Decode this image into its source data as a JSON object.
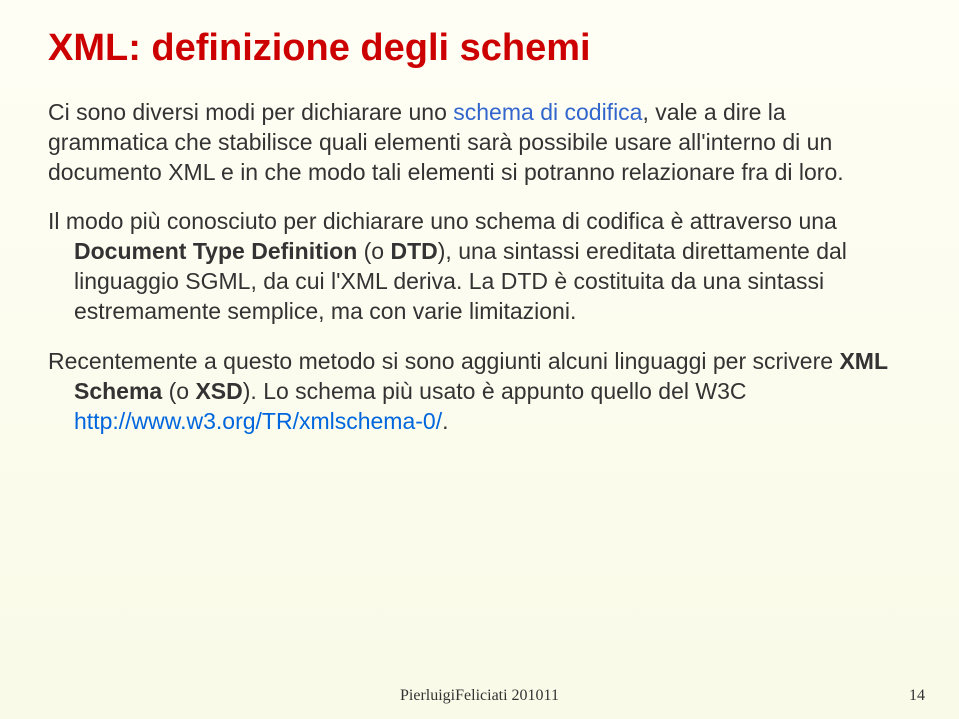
{
  "title": "XML: definizione degli schemi",
  "para1": {
    "t1": "Ci sono diversi modi per dichiarare uno ",
    "t2": "schema di codifica",
    "t3": ", vale a dire la grammatica che stabilisce quali elementi sarà possibile usare all'interno di un documento XML e in che modo tali elementi si potranno relazionare fra di loro."
  },
  "para2": {
    "t1": "Il modo più conosciuto per dichiarare uno schema di codifica è attraverso una ",
    "t2": "Document Type Definition",
    "t3": " (o ",
    "t4": "DTD",
    "t5": "), una sintassi ereditata direttamente dal linguaggio SGML, da cui l'XML deriva. La DTD è costituita da una sintassi estremamente semplice, ma con varie limitazioni."
  },
  "para3": {
    "t1": "Recentemente a questo metodo si sono aggiunti alcuni linguaggi per scrivere ",
    "t2": "XML Schema",
    "t3": " (o ",
    "t4": "XSD",
    "t5": "). Lo schema più usato è appunto quello del W3C ",
    "link": "http://www.w3.org/TR/xmlschema-0/",
    "t6": "."
  },
  "footer": "PierluigiFeliciati 201011",
  "pageNum": "14",
  "colors": {
    "title": "#cc0000",
    "body": "#333333",
    "accent": "#3366cc",
    "link": "#0066dd",
    "bgTop": "#fefef5",
    "bgBottom": "#fafae8"
  }
}
